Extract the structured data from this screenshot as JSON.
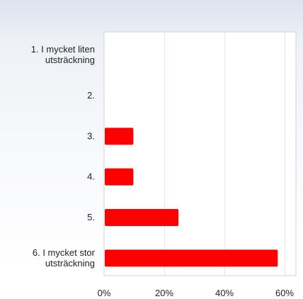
{
  "chart_data": {
    "type": "bar",
    "orientation": "horizontal",
    "categories": [
      [
        "1. I mycket liten",
        "utsträckning"
      ],
      [
        "2."
      ],
      [
        "3."
      ],
      [
        "4."
      ],
      [
        "5."
      ],
      [
        "6. I mycket stor",
        "utsträckning"
      ]
    ],
    "values": [
      0,
      0,
      9.5,
      9.5,
      24.5,
      57.5
    ],
    "value_unit": "%",
    "xlim": [
      0,
      60
    ],
    "x_ticks": [
      "0%",
      "20%",
      "40%",
      "60%"
    ],
    "x_tick_values": [
      0,
      20,
      40,
      60
    ],
    "grid": true,
    "bar_color": "#ff0000"
  },
  "colors": {
    "plot_background": "#ffffff",
    "plot_border": "#d0d3d8",
    "gridline": "#e4e6ea"
  }
}
